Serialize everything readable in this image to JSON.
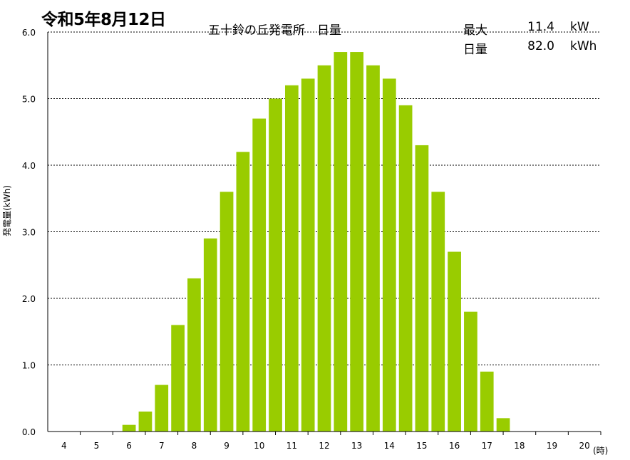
{
  "header": {
    "date_title": "令和5年8月12日",
    "station_title": "五十鈴の丘発電所　日量",
    "max": {
      "label": "最大",
      "value": "11.4",
      "unit": "kW"
    },
    "daily": {
      "label": "日量",
      "value": "82.0",
      "unit": "kWh"
    }
  },
  "colors": {
    "bar": "#99cc00",
    "grid": "#000000"
  },
  "chart_data": {
    "type": "bar",
    "ylabel": "発電量(kWh)",
    "xunit": "(時)",
    "ylim": [
      0,
      6
    ],
    "yticks": [
      "0.0",
      "1.0",
      "2.0",
      "3.0",
      "4.0",
      "5.0",
      "6.0"
    ],
    "xticks": [
      "4",
      "5",
      "6",
      "7",
      "8",
      "9",
      "10",
      "11",
      "12",
      "13",
      "14",
      "15",
      "16",
      "17",
      "18",
      "19",
      "20"
    ],
    "grid": true,
    "bars": [
      {
        "x": 6.0,
        "value": 0.1
      },
      {
        "x": 6.5,
        "value": 0.3
      },
      {
        "x": 7.0,
        "value": 0.7
      },
      {
        "x": 7.5,
        "value": 1.6
      },
      {
        "x": 8.0,
        "value": 2.3
      },
      {
        "x": 8.5,
        "value": 2.9
      },
      {
        "x": 9.0,
        "value": 3.6
      },
      {
        "x": 9.5,
        "value": 4.2
      },
      {
        "x": 10.0,
        "value": 4.7
      },
      {
        "x": 10.5,
        "value": 5.0
      },
      {
        "x": 11.0,
        "value": 5.2
      },
      {
        "x": 11.5,
        "value": 5.3
      },
      {
        "x": 12.0,
        "value": 5.5
      },
      {
        "x": 12.5,
        "value": 5.7
      },
      {
        "x": 13.0,
        "value": 5.7
      },
      {
        "x": 13.5,
        "value": 5.5
      },
      {
        "x": 14.0,
        "value": 5.3
      },
      {
        "x": 14.5,
        "value": 4.9
      },
      {
        "x": 15.0,
        "value": 4.3
      },
      {
        "x": 15.5,
        "value": 3.6
      },
      {
        "x": 16.0,
        "value": 2.7
      },
      {
        "x": 16.5,
        "value": 1.8
      },
      {
        "x": 17.0,
        "value": 0.9
      },
      {
        "x": 17.5,
        "value": 0.2
      }
    ]
  }
}
